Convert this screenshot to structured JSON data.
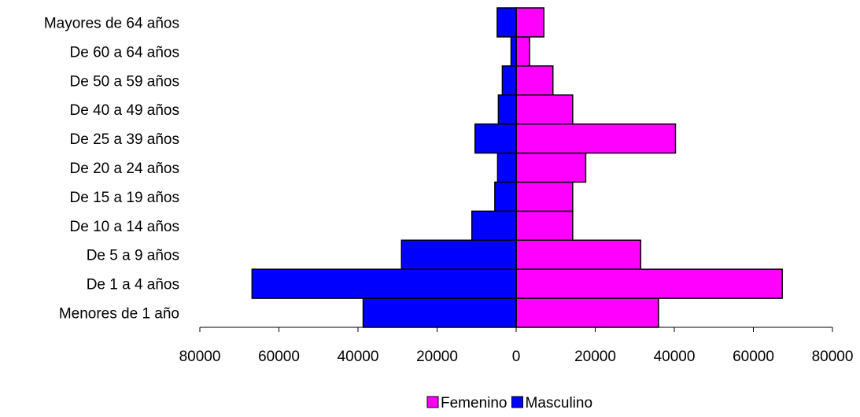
{
  "chart_data": {
    "type": "bar",
    "orientation": "horizontal",
    "categories": [
      "Menores de 1 año",
      "De 1 a 4 años",
      "De 5 a 9 años",
      "De 10 a 14 años",
      "De 15 a 19 años",
      "De 20 a 24 años",
      "De 25 a 39 años",
      "De 40 a 49 años",
      "De 50 a 59 años",
      "De 60 a 64 años",
      "Mayores de 64 años"
    ],
    "series": [
      {
        "name": "Femenino",
        "color": "#ff00ff",
        "values": [
          36000,
          67300,
          31500,
          14300,
          14300,
          17600,
          40300,
          14300,
          9300,
          3400,
          7000
        ]
      },
      {
        "name": "Masculino",
        "color": "#0000ff",
        "values": [
          38700,
          66800,
          29000,
          11200,
          5400,
          4700,
          10400,
          4500,
          3500,
          1300,
          4800
        ]
      }
    ],
    "xlim": [
      -80000,
      80000
    ],
    "x_ticks": [
      -80000,
      -60000,
      -40000,
      -20000,
      0,
      20000,
      40000,
      60000,
      80000
    ],
    "x_tick_labels": [
      "80000",
      "60000",
      "40000",
      "20000",
      "0",
      "20000",
      "40000",
      "60000",
      "80000"
    ],
    "grid": false,
    "legend_position": "bottom",
    "title": "",
    "xlabel": "",
    "ylabel": ""
  }
}
